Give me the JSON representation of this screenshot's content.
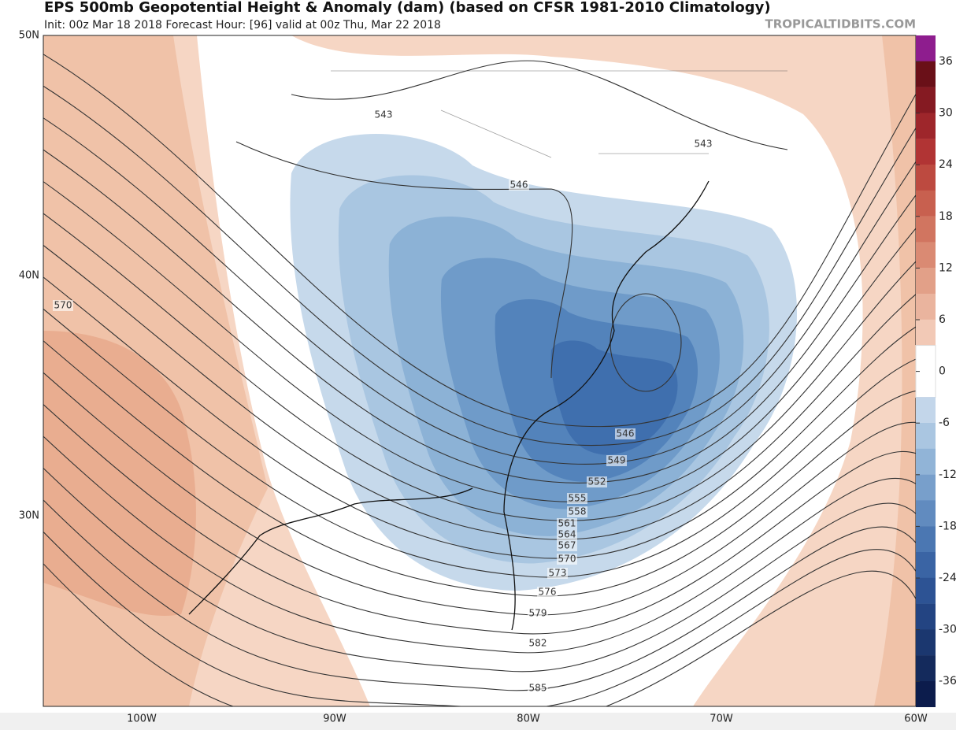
{
  "header": {
    "title": "EPS 500mb Geopotential Height & Anomaly (dam) (based on CFSR 1981-2010 Climatology)",
    "subtitle": "Init: 00z Mar 18 2018   Forecast Hour: [96]   valid at 00z Thu, Mar 22 2018",
    "source": "TROPICALTIDBITS.COM"
  },
  "map": {
    "lat_labels": [
      "50N",
      "40N",
      "30N"
    ],
    "lon_labels": [
      "100W",
      "90W",
      "80W",
      "70W",
      "60W"
    ],
    "contour_labels": [
      "543",
      "543",
      "546",
      "570",
      "546",
      "549",
      "552",
      "555",
      "558",
      "561",
      "564",
      "567",
      "570",
      "573",
      "576",
      "579",
      "582",
      "585"
    ]
  },
  "colorbar": {
    "labels": [
      "36",
      "30",
      "24",
      "18",
      "12",
      "6",
      "0",
      "-6",
      "-12",
      "-18",
      "-24",
      "-30",
      "-36"
    ]
  }
}
